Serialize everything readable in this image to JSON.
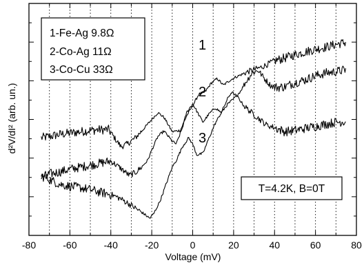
{
  "chart_data": {
    "type": "line",
    "title": "",
    "xlabel": "Voltage (mV)",
    "ylabel": "d²V/dI² (arb. un.)",
    "xlim": [
      -80,
      80
    ],
    "x_ticks": [
      "-80",
      "-60",
      "-40",
      "-20",
      "0",
      "20",
      "40",
      "60",
      "80"
    ],
    "y_tick_labels": "none",
    "grid": "vertical dotted lines every 10 mV",
    "y_units": "arb. un.",
    "legend": {
      "placement": "top-left",
      "entries": [
        "1-Fe-Ag  9.8Ω",
        "2-Co-Ag 11Ω",
        "3-Co-Cu 33Ω"
      ]
    },
    "annotations": {
      "conditions": "T=4.2K, B=0T",
      "curve_labels": [
        "1",
        "2",
        "3"
      ]
    },
    "series": [
      {
        "name": "1",
        "x": [
          -74,
          -70,
          -65,
          -60,
          -55,
          -50,
          -45,
          -41,
          -38,
          -35,
          -32,
          -28,
          -24,
          -20,
          -17,
          -14,
          -10,
          -6,
          -3,
          0,
          3,
          6,
          9,
          12,
          15,
          18,
          21,
          24,
          27,
          30,
          33,
          36,
          40,
          45,
          50,
          55,
          60,
          65,
          70,
          75
        ],
        "y": [
          6.3,
          6.5,
          6.8,
          7.0,
          7.2,
          7.4,
          7.5,
          7.5,
          6.2,
          5.0,
          5.4,
          6.3,
          7.6,
          9.0,
          10.0,
          9.3,
          7.2,
          7.4,
          9.5,
          11.0,
          12.7,
          13.0,
          14.3,
          15.0,
          14.0,
          14.7,
          15.2,
          15.6,
          16.0,
          16.3,
          16.6,
          17.0,
          17.6,
          18.0,
          18.5,
          18.9,
          19.3,
          19.6,
          20.0,
          20.3
        ]
      },
      {
        "name": "2",
        "x": [
          -74,
          -70,
          -65,
          -60,
          -55,
          -50,
          -45,
          -40,
          -35,
          -31,
          -28,
          -25,
          -22,
          -20,
          -17,
          -14,
          -10,
          -8,
          -5,
          -3,
          0,
          2,
          5,
          8,
          11,
          14,
          17,
          20,
          23,
          26,
          29,
          32,
          35,
          38,
          41,
          45,
          50,
          55,
          60,
          65,
          70,
          75
        ],
        "y": [
          0.5,
          1.0,
          1.3,
          1.7,
          2.0,
          2.3,
          2.6,
          2.9,
          1.8,
          0.8,
          1.2,
          2.0,
          3.0,
          4.5,
          6.5,
          7.3,
          5.8,
          5.4,
          7.8,
          10.0,
          11.3,
          10.2,
          8.6,
          9.8,
          10.7,
          10.0,
          11.2,
          12.0,
          13.0,
          14.5,
          15.8,
          16.2,
          15.0,
          14.0,
          13.7,
          13.8,
          14.4,
          14.8,
          15.4,
          15.8,
          16.0,
          16.3
        ]
      },
      {
        "name": "3",
        "x": [
          -74,
          -70,
          -65,
          -60,
          -55,
          -50,
          -45,
          -40,
          -36,
          -32,
          -28,
          -24,
          -21,
          -19,
          -16,
          -13,
          -10,
          -8,
          -5,
          -2,
          0,
          2,
          5,
          8,
          11,
          14,
          17,
          19,
          22,
          25,
          28,
          32,
          36,
          40,
          45,
          50,
          55,
          60,
          65,
          70,
          75
        ],
        "y": [
          0.7,
          0.2,
          -0.5,
          -0.8,
          -1.0,
          -1.3,
          -1.7,
          -2.0,
          -2.5,
          -3.2,
          -4.0,
          -4.8,
          -5.5,
          -4.8,
          -3.0,
          -0.5,
          2.0,
          3.0,
          5.0,
          6.3,
          5.4,
          3.8,
          4.0,
          6.3,
          8.4,
          10.0,
          12.0,
          13.0,
          12.3,
          11.0,
          10.2,
          9.2,
          8.2,
          7.8,
          7.2,
          7.4,
          7.7,
          8.0,
          8.3,
          8.6,
          8.7
        ]
      }
    ]
  }
}
